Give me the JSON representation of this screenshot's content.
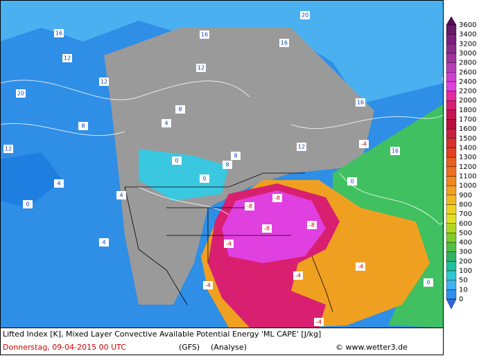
{
  "legend": {
    "labels": [
      "3600",
      "3400",
      "3200",
      "3000",
      "2800",
      "2600",
      "2400",
      "2200",
      "2000",
      "1800",
      "1700",
      "1600",
      "1500",
      "1400",
      "1300",
      "1200",
      "1100",
      "1000",
      "900",
      "800",
      "700",
      "600",
      "500",
      "400",
      "300",
      "200",
      "100",
      "50",
      "10",
      "0"
    ]
  },
  "map": {
    "labels": [
      "20",
      "16",
      "12",
      "8",
      "4",
      "12",
      "16",
      "20",
      "8",
      "12",
      "16",
      "4",
      "8",
      "12",
      "16",
      "0",
      "0",
      "4",
      "-8",
      "-8",
      "-8",
      "-8",
      "-4",
      "-4",
      "-4",
      "-4",
      "-4",
      "-4",
      "0",
      "4",
      "8",
      "12",
      "16",
      "0",
      "0"
    ]
  },
  "footer": {
    "title": "Lifted Index [K], Mixed Layer Convective Available Potential Energy 'ML CAPE' [J/kg]",
    "date": "Donnerstag, 09-04-2015  00 UTC",
    "model": "(GFS)",
    "run": "(Analyse)",
    "credit": "© www.wetter3.de"
  }
}
